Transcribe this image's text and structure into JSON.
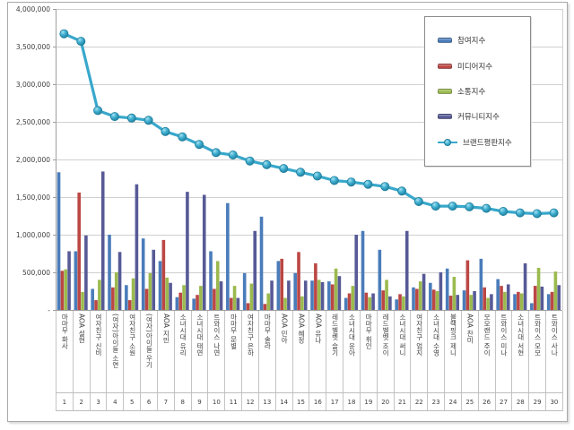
{
  "chart_data": {
    "type": "bar+line",
    "categories": [
      "마마무 화사",
      "AOA 설현",
      "여자친구 신비",
      "(여자)아이들 소연",
      "여자친구 소원",
      "(여자)아이들 우기",
      "AOA 지민",
      "소녀시대 유리",
      "소녀시대 태연",
      "트와이스 나연",
      "마마무 문별",
      "여자친구 은하",
      "마마무 솔라",
      "AOA 민아",
      "AOA 혜정",
      "AOA 유나",
      "레드벨벳 슬기",
      "소녀시대 윤아",
      "마마무 휘인",
      "레드벨벳 조이",
      "소녀시대 써니",
      "여자친구 엄지",
      "소녀시대 수영",
      "블랙핑크 제니",
      "AOA 찬미",
      "모모랜드 주이",
      "트와이스 미나",
      "소녀시대 서현",
      "트와이스 모모",
      "트와이스 사나"
    ],
    "category_numbers": [
      "1",
      "2",
      "3",
      "4",
      "5",
      "6",
      "7",
      "8",
      "9",
      "10",
      "11",
      "12",
      "13",
      "14",
      "15",
      "16",
      "17",
      "18",
      "19",
      "20",
      "21",
      "22",
      "23",
      "24",
      "25",
      "26",
      "27",
      "28",
      "29",
      "30"
    ],
    "series": [
      {
        "name": "참여지수",
        "type": "bar",
        "color": "#4a7cba",
        "values": [
          1830000,
          780000,
          280000,
          1000000,
          330000,
          950000,
          650000,
          170000,
          150000,
          780000,
          1420000,
          490000,
          1240000,
          650000,
          490000,
          390000,
          380000,
          160000,
          1050000,
          800000,
          140000,
          300000,
          360000,
          550000,
          260000,
          680000,
          410000,
          210000,
          90000,
          210000
        ]
      },
      {
        "name": "미디어지수",
        "type": "bar",
        "color": "#bb4744",
        "values": [
          520000,
          1560000,
          130000,
          300000,
          130000,
          280000,
          930000,
          230000,
          200000,
          280000,
          160000,
          90000,
          80000,
          680000,
          770000,
          620000,
          340000,
          220000,
          230000,
          260000,
          210000,
          280000,
          270000,
          190000,
          660000,
          300000,
          320000,
          240000,
          320000,
          240000
        ]
      },
      {
        "name": "소통지수",
        "type": "bar",
        "color": "#9bba4e",
        "values": [
          540000,
          240000,
          400000,
          500000,
          420000,
          490000,
          430000,
          330000,
          320000,
          650000,
          320000,
          350000,
          220000,
          160000,
          180000,
          400000,
          550000,
          320000,
          170000,
          400000,
          180000,
          380000,
          250000,
          440000,
          200000,
          160000,
          240000,
          220000,
          560000,
          510000
        ]
      },
      {
        "name": "커뮤니티지수",
        "type": "bar",
        "color": "#575a96",
        "values": [
          780000,
          990000,
          1840000,
          770000,
          1670000,
          800000,
          360000,
          1570000,
          1530000,
          380000,
          160000,
          1050000,
          390000,
          390000,
          390000,
          370000,
          450000,
          1000000,
          220000,
          180000,
          1050000,
          480000,
          500000,
          200000,
          250000,
          210000,
          340000,
          620000,
          310000,
          330000
        ]
      },
      {
        "name": "브랜드평판지수",
        "type": "line",
        "color": "#38a8cb",
        "values": [
          3670000,
          3570000,
          2650000,
          2570000,
          2550000,
          2520000,
          2370000,
          2300000,
          2200000,
          2090000,
          2060000,
          1980000,
          1930000,
          1880000,
          1830000,
          1780000,
          1720000,
          1700000,
          1670000,
          1640000,
          1580000,
          1440000,
          1380000,
          1380000,
          1370000,
          1350000,
          1310000,
          1290000,
          1280000,
          1290000
        ]
      }
    ],
    "ylim": [
      0,
      4000000
    ],
    "ytick_step": 500000,
    "ytick_labels": [
      "-",
      "500,000",
      "1,000,000",
      "1,500,000",
      "2,000,000",
      "2,500,000",
      "3,000,000",
      "3,500,000",
      "4,000,000"
    ],
    "grid": true,
    "legend_position": "top-right"
  },
  "chart_style": {
    "background": "#ffffff",
    "gridline_color": "#d0d0d0",
    "axis_color": "#a0a0a0",
    "table_border_color": "#c4c4c4",
    "text_color": "#3f3f3f",
    "line_marker_edge": "#1f7e9c"
  }
}
